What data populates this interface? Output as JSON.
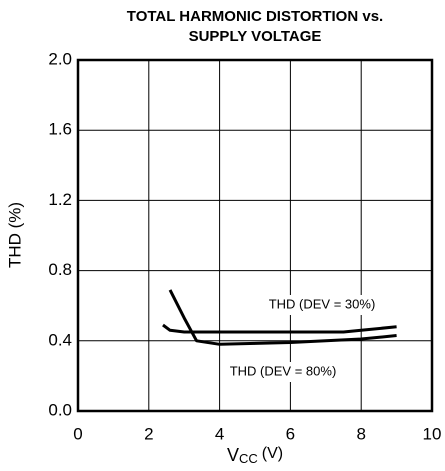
{
  "chart_data": {
    "type": "line",
    "title": [
      "TOTAL HARMONIC DISTORTION vs.",
      "SUPPLY VOLTAGE"
    ],
    "x_label": {
      "main": "V",
      "sub": "CC",
      "unit": "(V)"
    },
    "y_label": "THD (%)",
    "series": [
      {
        "name": "THD (DEV = 30%)",
        "color": "#000000",
        "x": [
          2.4,
          2.6,
          3.0,
          4,
          5,
          6,
          7,
          7.5,
          8,
          9
        ],
        "values": [
          0.49,
          0.46,
          0.45,
          0.45,
          0.45,
          0.45,
          0.45,
          0.45,
          0.46,
          0.48
        ]
      },
      {
        "name": "THD (DEV = 80%)",
        "color": "#000000",
        "x": [
          2.6,
          3.0,
          3.35,
          4,
          5,
          6,
          7,
          8,
          9
        ],
        "values": [
          0.69,
          0.53,
          0.4,
          0.38,
          0.385,
          0.39,
          0.4,
          0.41,
          0.43
        ]
      }
    ],
    "xlim": [
      0,
      10
    ],
    "xticks": [
      0,
      2,
      4,
      6,
      8,
      10
    ],
    "ylim": [
      0,
      2
    ],
    "yticks": [
      {
        "value": 0,
        "label": "0.0"
      },
      {
        "value": 0.4,
        "label": "0.4"
      },
      {
        "value": 0.8,
        "label": "0.8"
      },
      {
        "value": 1.2,
        "label": "1.2"
      },
      {
        "value": 1.6,
        "label": "1.6"
      },
      {
        "value": 2,
        "label": "2.0"
      }
    ],
    "grid": true
  }
}
